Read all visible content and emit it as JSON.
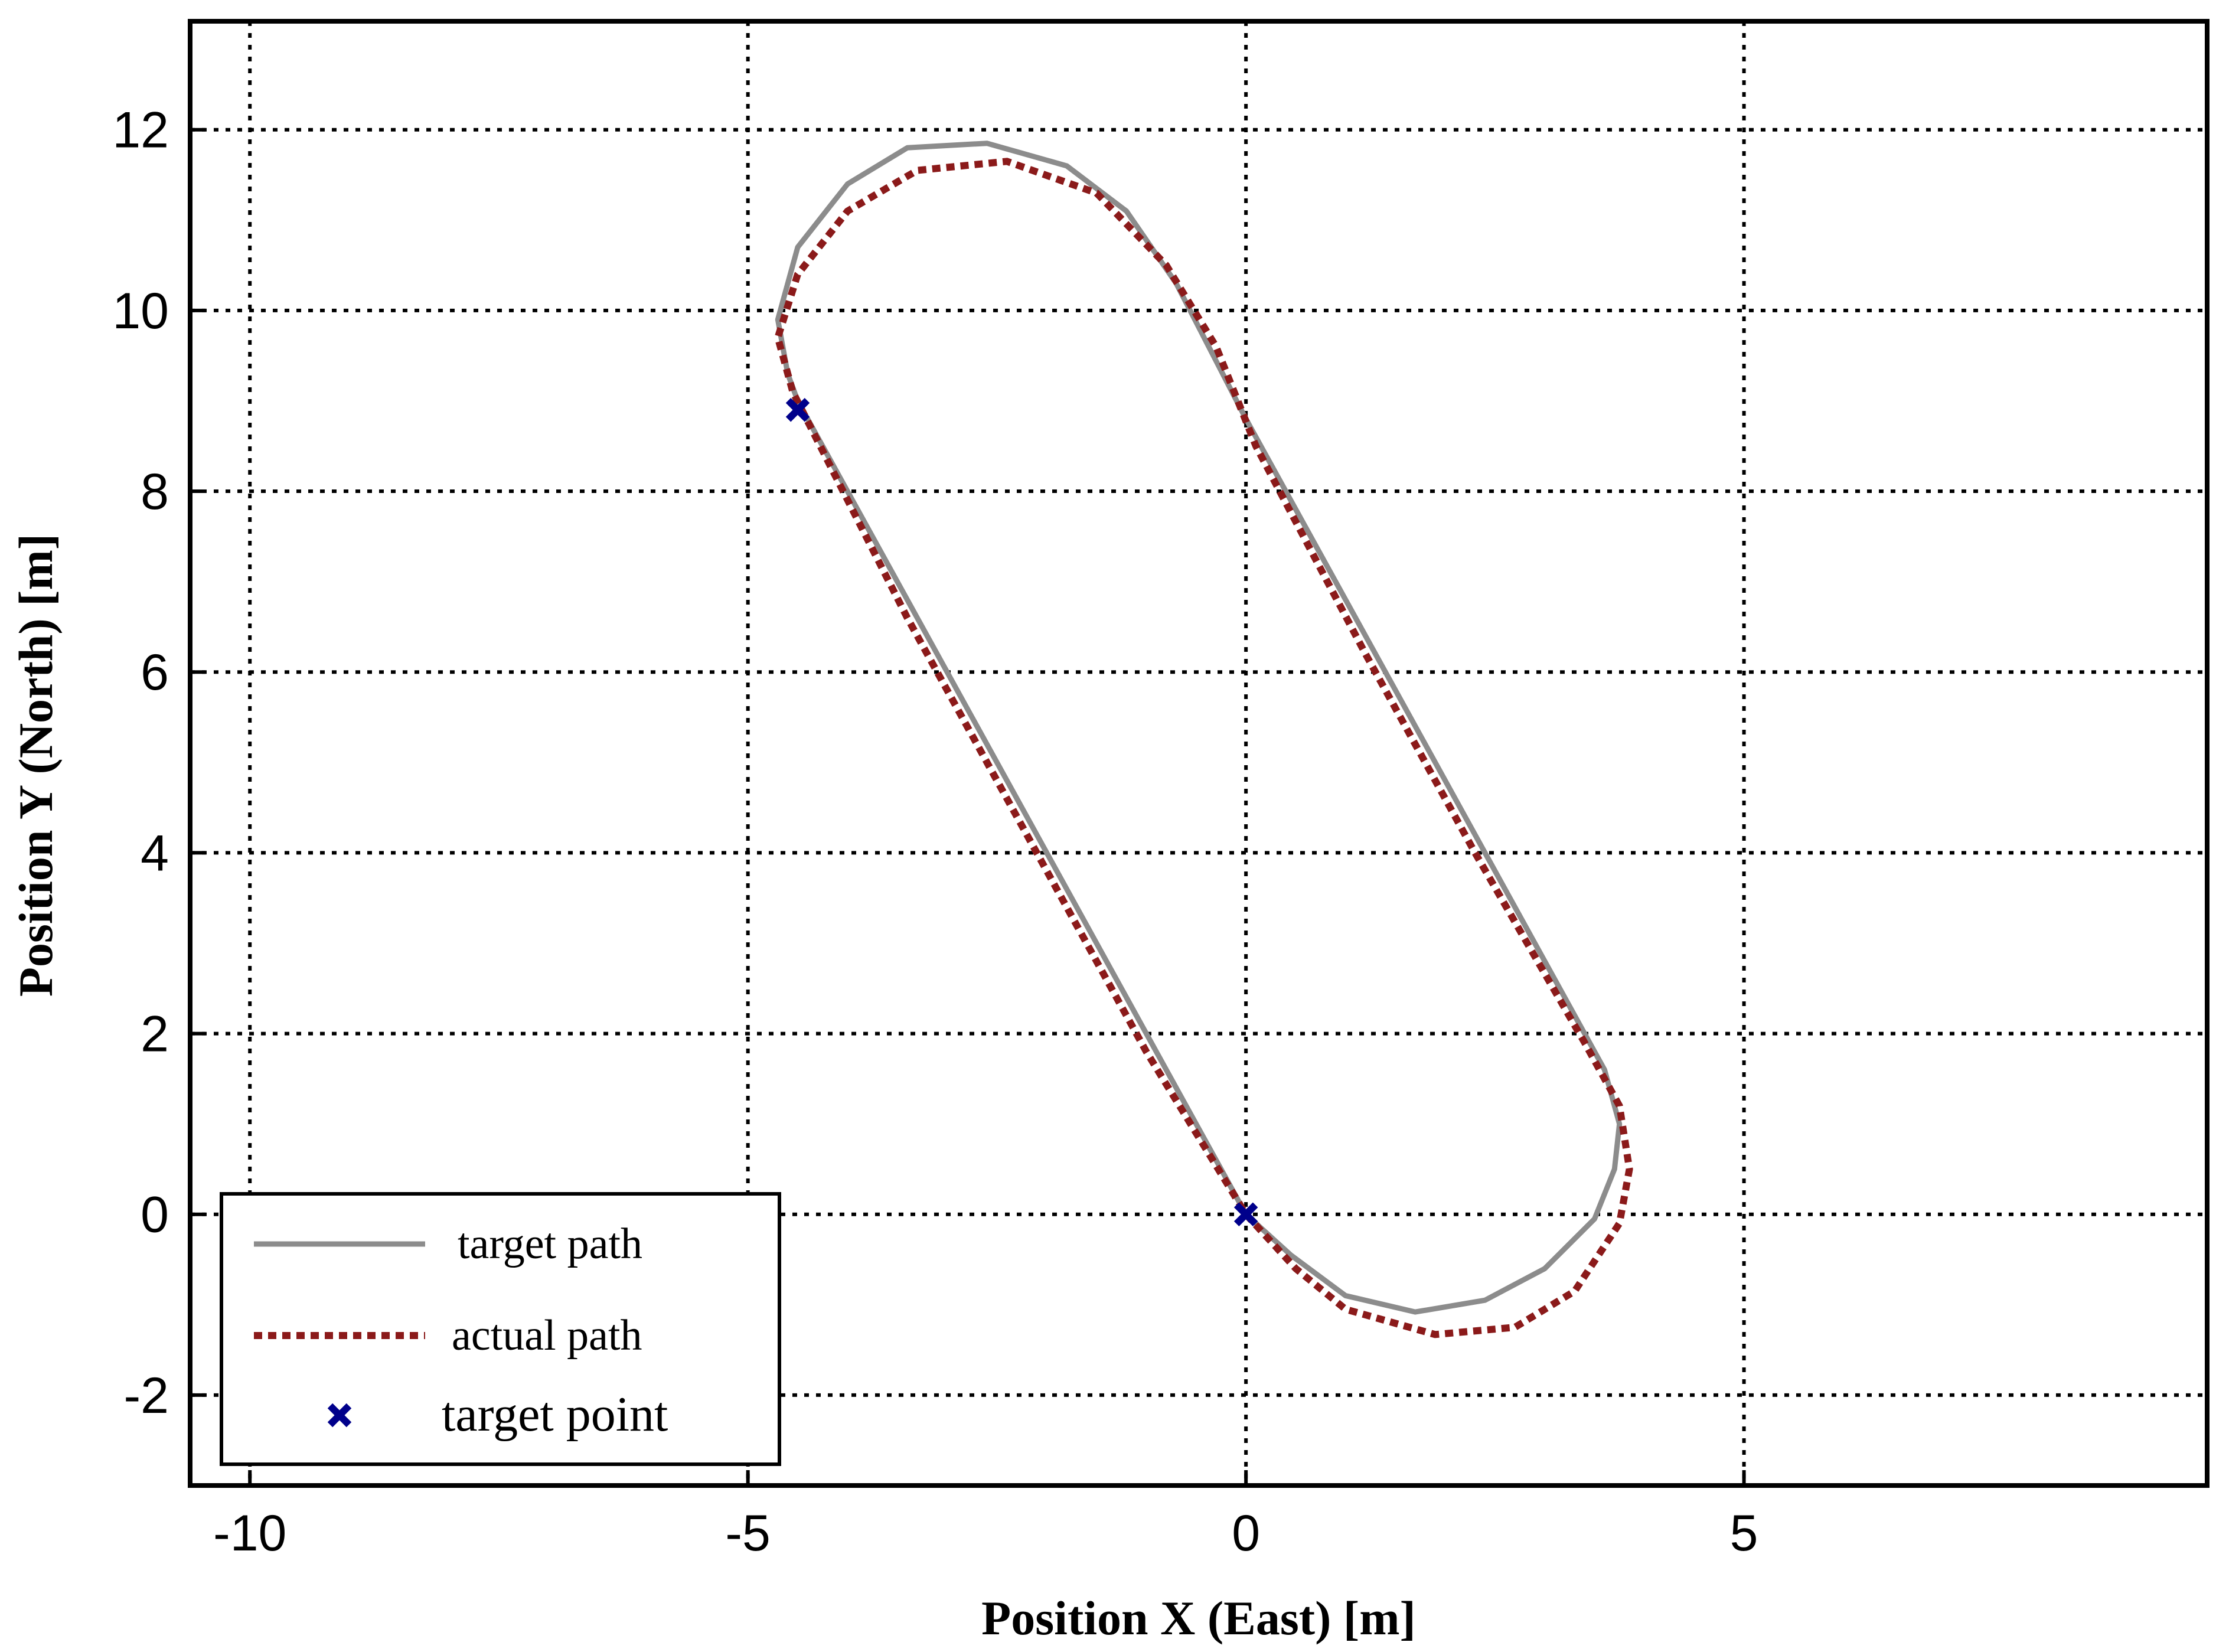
{
  "chart_data": {
    "type": "line",
    "title": "",
    "xlabel": "Position X (East) [m]",
    "ylabel": "Position Y (North) [m]",
    "xlim": [
      -10.6,
      9.65
    ],
    "ylim": [
      -3.0,
      13.2
    ],
    "xticks": [
      -10,
      -5,
      0,
      5
    ],
    "xtick_labels": [
      "-10",
      "-5",
      "0",
      "5"
    ],
    "yticks": [
      -2,
      0,
      2,
      4,
      6,
      8,
      10,
      12
    ],
    "ytick_labels": [
      "-2",
      "0",
      "2",
      "4",
      "6",
      "8",
      "10",
      "12"
    ],
    "grid": true,
    "legend_position": "bottom-left",
    "series": [
      {
        "name": "target path",
        "style": "solid",
        "color": "#8c8c8c",
        "points": [
          [
            0.0,
            0.0
          ],
          [
            0.45,
            -0.45
          ],
          [
            1.0,
            -0.9
          ],
          [
            1.7,
            -1.08
          ],
          [
            2.4,
            -0.95
          ],
          [
            3.0,
            -0.6
          ],
          [
            3.5,
            -0.05
          ],
          [
            3.7,
            0.5
          ],
          [
            3.75,
            1.0
          ],
          [
            3.6,
            1.6
          ],
          [
            2.4,
            4.0
          ],
          [
            1.2,
            6.4
          ],
          [
            0.0,
            8.8
          ],
          [
            -0.7,
            10.3
          ],
          [
            -1.2,
            11.1
          ],
          [
            -1.8,
            11.6
          ],
          [
            -2.6,
            11.85
          ],
          [
            -3.4,
            11.8
          ],
          [
            -4.0,
            11.4
          ],
          [
            -4.5,
            10.7
          ],
          [
            -4.7,
            9.9
          ],
          [
            -4.6,
            9.3
          ],
          [
            -4.5,
            9.0
          ],
          [
            -3.3,
            6.6
          ],
          [
            -2.1,
            4.2
          ],
          [
            -1.0,
            2.0
          ],
          [
            0.0,
            0.0
          ]
        ]
      },
      {
        "name": "actual path",
        "style": "dotted",
        "color": "#8b1a1a",
        "points": [
          [
            0.0,
            0.0
          ],
          [
            0.5,
            -0.6
          ],
          [
            1.0,
            -1.05
          ],
          [
            1.9,
            -1.33
          ],
          [
            2.7,
            -1.25
          ],
          [
            3.3,
            -0.85
          ],
          [
            3.75,
            -0.1
          ],
          [
            3.85,
            0.5
          ],
          [
            3.75,
            1.2
          ],
          [
            3.4,
            1.9
          ],
          [
            2.3,
            4.0
          ],
          [
            1.2,
            6.2
          ],
          [
            0.1,
            8.5
          ],
          [
            -0.3,
            9.6
          ],
          [
            -0.8,
            10.5
          ],
          [
            -1.5,
            11.3
          ],
          [
            -2.4,
            11.65
          ],
          [
            -3.3,
            11.55
          ],
          [
            -4.0,
            11.1
          ],
          [
            -4.5,
            10.4
          ],
          [
            -4.7,
            9.7
          ],
          [
            -4.55,
            9.1
          ],
          [
            -3.4,
            6.6
          ],
          [
            -2.1,
            4.0
          ],
          [
            -1.0,
            1.8
          ],
          [
            0.0,
            0.0
          ]
        ]
      },
      {
        "name": "target point",
        "style": "marker",
        "marker": "x",
        "color": "#00008b",
        "points": [
          [
            -4.5,
            8.9
          ],
          [
            0.0,
            0.0
          ]
        ]
      }
    ]
  }
}
